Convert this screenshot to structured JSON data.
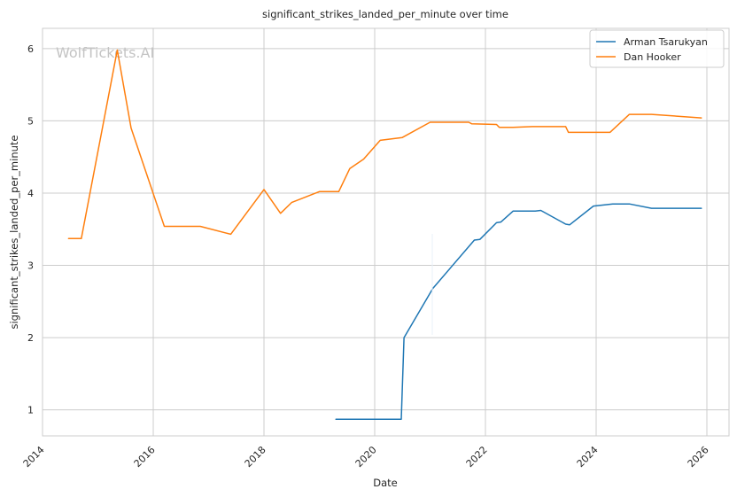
{
  "chart_data": {
    "type": "line",
    "title": "significant_strikes_landed_per_minute over time",
    "xlabel": "Date",
    "ylabel": "significant_strikes_landed_per_minute",
    "watermark": "WolfTickets.AI",
    "xlim": [
      2014.0,
      2026.4
    ],
    "ylim": [
      0.64,
      6.28
    ],
    "x_ticks": [
      2014,
      2016,
      2018,
      2020,
      2022,
      2024,
      2026
    ],
    "y_ticks": [
      1,
      2,
      3,
      4,
      5,
      6
    ],
    "grid": true,
    "legend_position": "top-right",
    "series": [
      {
        "name": "Arman Tsarukyan",
        "color": "#1f77b4",
        "x": [
          2019.3,
          2020.48,
          2020.53,
          2021.05,
          2021.8,
          2021.9,
          2022.2,
          2022.28,
          2022.5,
          2022.9,
          2023.0,
          2023.45,
          2023.52,
          2023.95,
          2024.3,
          2024.6,
          2025.0,
          2025.9
        ],
        "y": [
          0.87,
          0.87,
          2.0,
          2.68,
          3.35,
          3.36,
          3.59,
          3.6,
          3.75,
          3.75,
          3.76,
          3.57,
          3.56,
          3.82,
          3.85,
          3.85,
          3.79,
          3.79
        ]
      },
      {
        "name": "Dan Hooker",
        "color": "#ff7f0e",
        "x": [
          2014.47,
          2014.7,
          2015.35,
          2015.6,
          2016.2,
          2016.85,
          2017.4,
          2018.0,
          2018.3,
          2018.5,
          2019.0,
          2019.35,
          2019.55,
          2019.8,
          2020.1,
          2020.5,
          2021.0,
          2021.7,
          2021.75,
          2022.2,
          2022.25,
          2022.5,
          2022.85,
          2023.45,
          2023.5,
          2023.95,
          2024.25,
          2024.6,
          2025.0,
          2025.9
        ],
        "y": [
          3.37,
          3.37,
          5.98,
          4.9,
          3.54,
          3.54,
          3.43,
          4.05,
          3.72,
          3.87,
          4.02,
          4.02,
          4.34,
          4.47,
          4.73,
          4.77,
          4.98,
          4.98,
          4.96,
          4.95,
          4.91,
          4.91,
          4.92,
          4.92,
          4.84,
          4.84,
          4.84,
          5.09,
          5.09,
          5.04
        ]
      }
    ]
  }
}
